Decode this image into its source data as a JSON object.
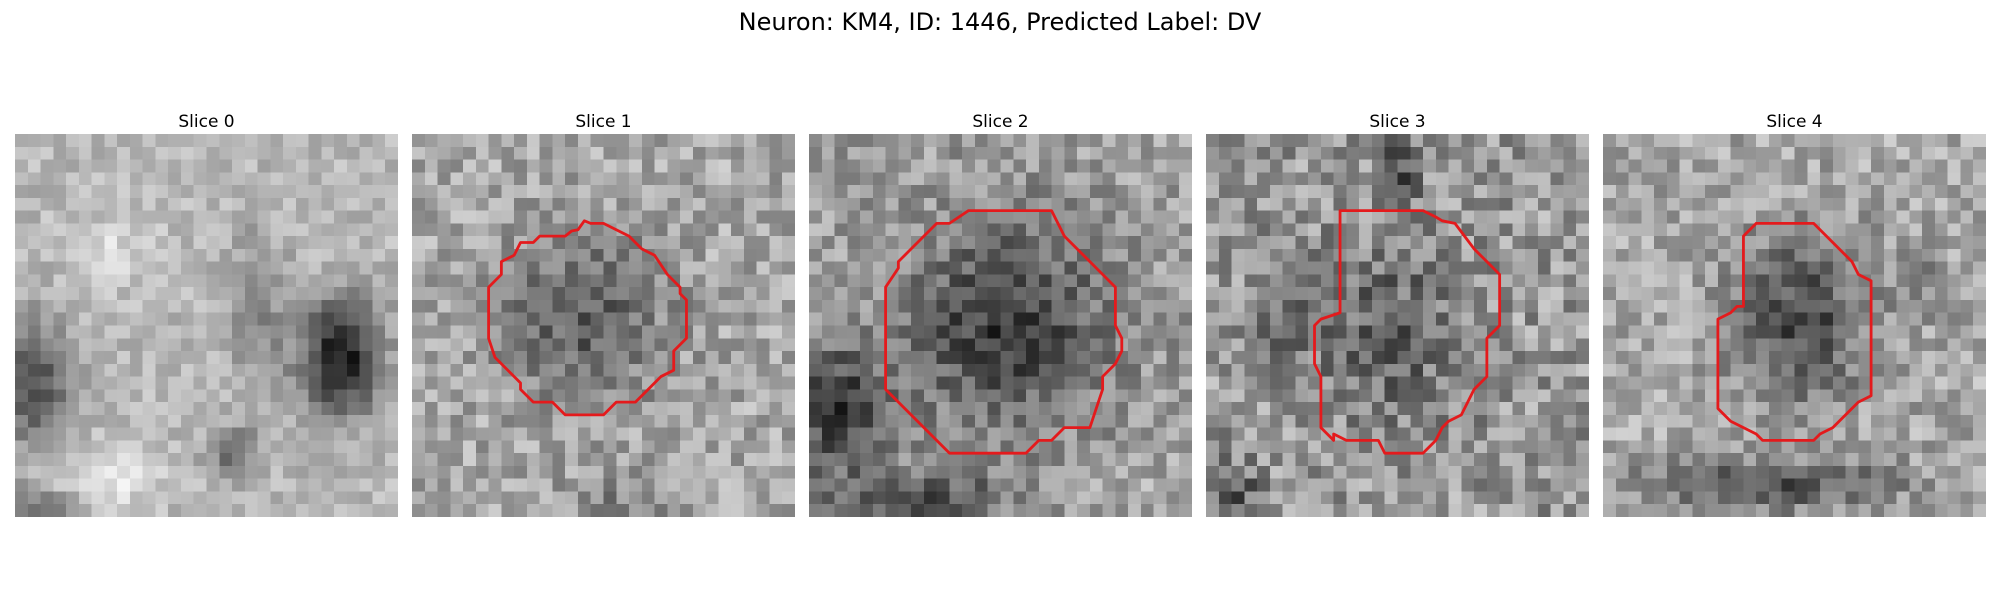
{
  "figure": {
    "title": "Neuron: KM4, ID: 1446, Predicted Label: DV",
    "contour_color": "#e41a1c"
  },
  "slices": [
    {
      "label": "Slice 0",
      "has_contour": false
    },
    {
      "label": "Slice 1",
      "has_contour": true
    },
    {
      "label": "Slice 2",
      "has_contour": true
    },
    {
      "label": "Slice 3",
      "has_contour": true
    },
    {
      "label": "Slice 4",
      "has_contour": true
    }
  ]
}
